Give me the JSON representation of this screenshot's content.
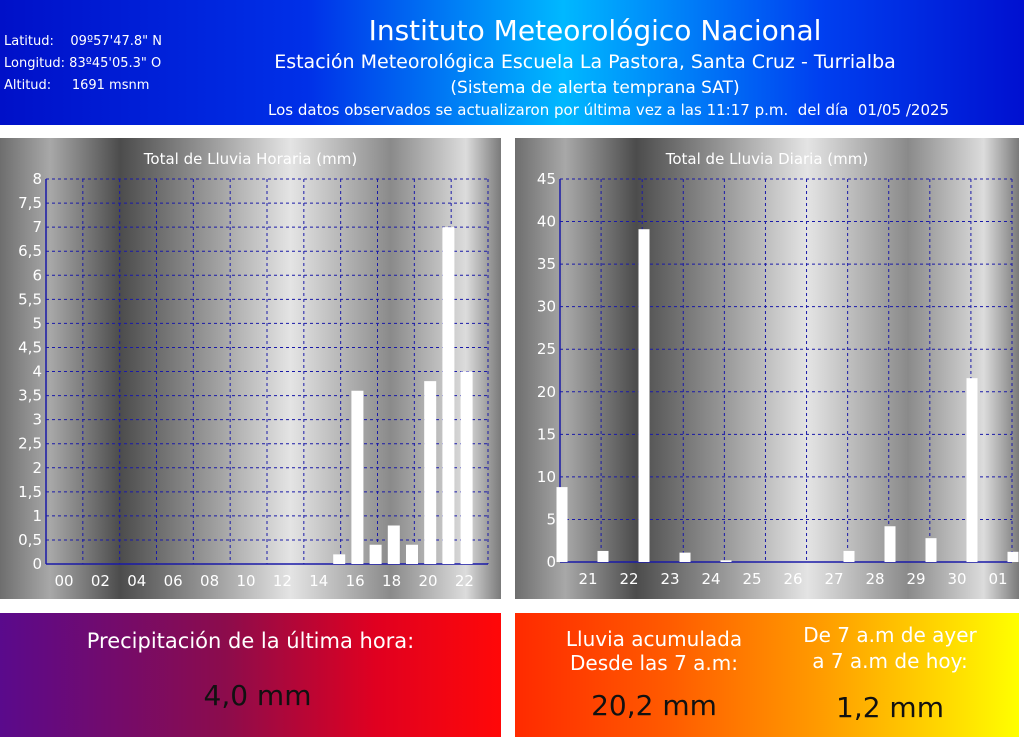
{
  "header": {
    "latitude": "Latitud:    09º57'47.8\" N",
    "longitude": "Longitud: 83º45'05.3\" O",
    "altitude": "Altitud:     1691 msnm",
    "title": "Instituto Meteorológico Nacional",
    "station": "Estación Meteorológica Escuela La Pastora, Santa Cruz - Turrialba",
    "system": "(Sistema de alerta temprana SAT)",
    "updated": "Los datos observados se actualizaron por última vez a las 11:17 p.m.  del día  01/05 /2025"
  },
  "colors": {
    "grid": "#1a1aa8",
    "bars": "#ffffff"
  },
  "chart_data": [
    {
      "type": "bar",
      "title": "Total de Lluvia Horaria (mm)",
      "ylim": [
        0,
        8
      ],
      "ytick_labels": [
        "0",
        "0,5",
        "1",
        "1,5",
        "2",
        "2,5",
        "3",
        "3,5",
        "4",
        "4,5",
        "5",
        "5,5",
        "6",
        "6,5",
        "7",
        "7,5",
        "8"
      ],
      "xtick_labels": [
        "00",
        "02",
        "04",
        "06",
        "08",
        "10",
        "12",
        "14",
        "16",
        "18",
        "20",
        "22"
      ],
      "categories": [
        "00",
        "01",
        "02",
        "03",
        "04",
        "05",
        "06",
        "07",
        "08",
        "09",
        "10",
        "11",
        "12",
        "13",
        "14",
        "15",
        "16",
        "17",
        "18",
        "19",
        "20",
        "21",
        "22",
        "23"
      ],
      "values": [
        0,
        0,
        0,
        0,
        0,
        0,
        0,
        0,
        0,
        0,
        0,
        0,
        0,
        0,
        0,
        0,
        0.2,
        3.6,
        0.4,
        0.8,
        0.4,
        3.8,
        7.0,
        4.0
      ],
      "grid": true
    },
    {
      "type": "bar",
      "title": "Total de Lluvia Diaria (mm)",
      "ylim": [
        0,
        45
      ],
      "ytick_labels": [
        "0",
        "5",
        "10",
        "15",
        "20",
        "25",
        "30",
        "35",
        "40",
        "45"
      ],
      "xtick_labels": [
        "21",
        "22",
        "23",
        "24",
        "25",
        "26",
        "27",
        "28",
        "29",
        "30",
        "01"
      ],
      "categories": [
        "20",
        "21",
        "22",
        "23",
        "24",
        "25",
        "26",
        "27",
        "28",
        "29",
        "30",
        "01"
      ],
      "values": [
        8.8,
        1.3,
        39.1,
        1.1,
        0.2,
        0,
        0,
        1.3,
        4.2,
        2.8,
        21.6,
        1.2
      ],
      "grid": true
    }
  ],
  "last_hour": {
    "label": "Precipitación de la última hora:",
    "value": "4,0 mm"
  },
  "accumulated": {
    "label_1": "Lluvia acumulada",
    "label_2": "Desde las 7 a.m:",
    "value": "20,2 mm"
  },
  "daily_total": {
    "label_1": "De 7 a.m de ayer",
    "label_2": "a 7 a.m de hoy:",
    "value": "1,2 mm"
  }
}
